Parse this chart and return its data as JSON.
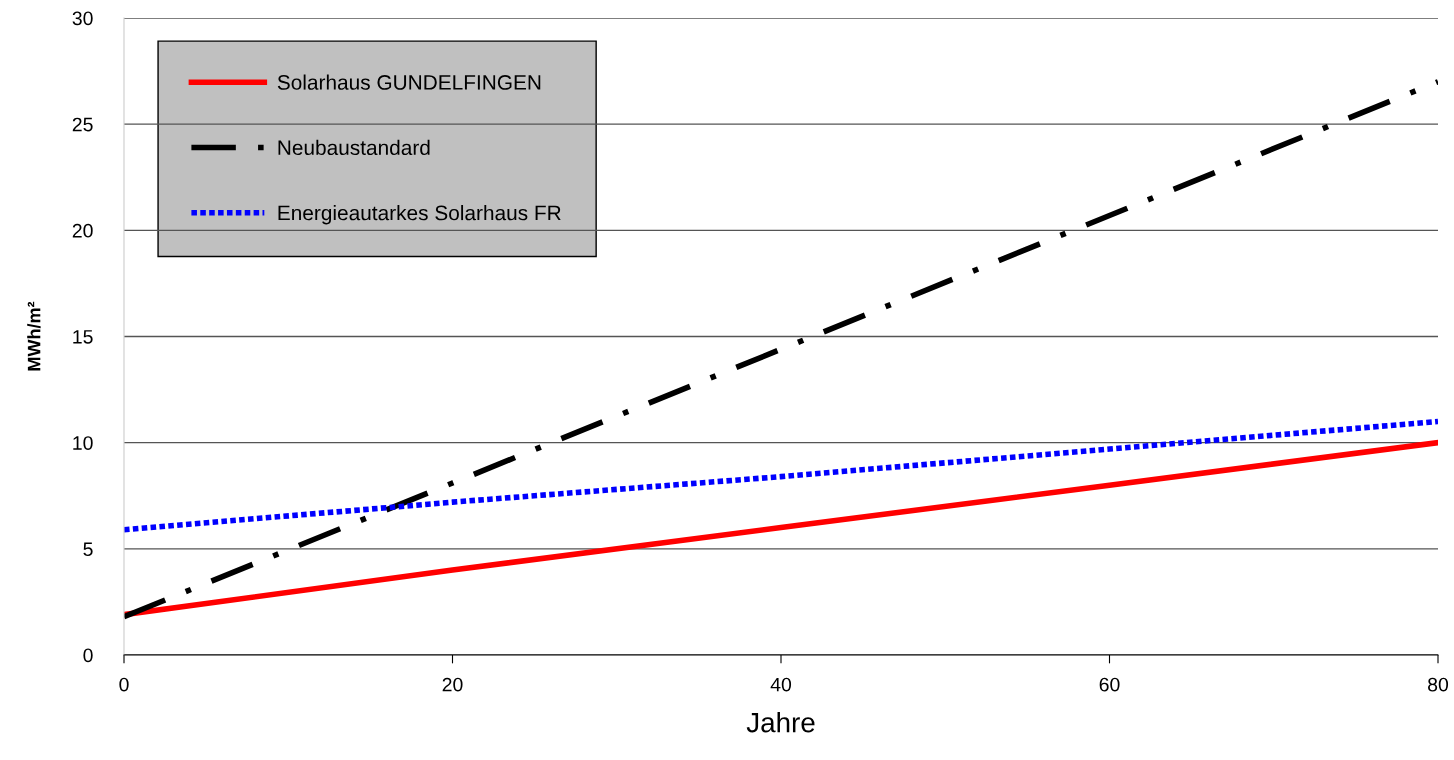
{
  "chart_data": {
    "type": "line",
    "xlabel": "Jahre",
    "ylabel": "MWh/m²",
    "xlim": [
      0,
      80
    ],
    "xticks": [
      0,
      20,
      40,
      60,
      80
    ],
    "ylim": [
      0,
      30
    ],
    "yticks": [
      0,
      5,
      10,
      15,
      20,
      25,
      30
    ],
    "grid": "y",
    "legend": "top left",
    "series": [
      {
        "name": "Solarhaus GUNDELFINGEN",
        "color": "#ff0000",
        "line_style": "solid",
        "x": [
          0,
          20,
          40,
          60,
          80
        ],
        "values": [
          1.9,
          4.0,
          6.0,
          8.0,
          10.0
        ]
      },
      {
        "name": "Neubaustandard",
        "color": "#000000",
        "line_style": "dashdot",
        "x": [
          0,
          20,
          40,
          60,
          80
        ],
        "values": [
          1.8,
          8.1,
          14.4,
          20.7,
          27.0
        ]
      },
      {
        "name": "Energieautarkes Solarhaus FR",
        "color": "#0000ff",
        "line_style": "dotted",
        "x": [
          0,
          20,
          40,
          60,
          80
        ],
        "values": [
          5.9,
          7.2,
          8.4,
          9.7,
          11.0
        ]
      }
    ]
  }
}
